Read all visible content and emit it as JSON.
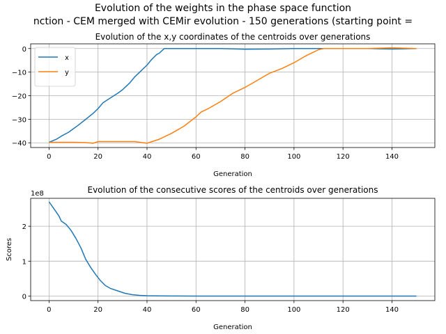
{
  "figure": {
    "suptitle_line1": "Evolution of the weights in the phase space  function",
    "suptitle_line2": "nction - CEM merged with CEMir evolution - 150 generations (starting point ="
  },
  "colors": {
    "series1": "#1f77b4",
    "series2": "#ff7f0e",
    "grid": "#b0b0b0"
  },
  "chart_data": [
    {
      "type": "line",
      "title": "Evolution of the x,y coordinates of the centroids over generations",
      "xlabel": "Generation",
      "ylabel": "",
      "xlim": [
        -7.5,
        157.5
      ],
      "ylim": [
        -42,
        2
      ],
      "xticks": [
        0,
        20,
        40,
        60,
        80,
        100,
        120,
        140
      ],
      "yticks": [
        -40,
        -30,
        -20,
        -10,
        0
      ],
      "grid": true,
      "legend": "upper-left",
      "series": [
        {
          "name": "x",
          "color": "#1f77b4",
          "x": [
            0,
            3,
            5,
            8,
            10,
            12,
            15,
            18,
            20,
            22,
            25,
            28,
            30,
            33,
            35,
            38,
            40,
            42,
            44,
            45,
            47,
            50,
            55,
            60,
            70,
            80,
            90,
            100,
            110,
            120,
            130,
            140,
            150
          ],
          "y": [
            -39.8,
            -38.5,
            -37.2,
            -35.5,
            -34,
            -32.5,
            -30,
            -27.5,
            -25.5,
            -23,
            -21,
            -19,
            -17.5,
            -14.5,
            -12,
            -9,
            -7,
            -4.5,
            -2.5,
            -2,
            0,
            0,
            0,
            0,
            0,
            -0.3,
            -0.2,
            0,
            0,
            0,
            0,
            -0.2,
            0
          ]
        },
        {
          "name": "y",
          "color": "#ff7f0e",
          "x": [
            0,
            5,
            10,
            15,
            18,
            20,
            25,
            30,
            35,
            38,
            40,
            42,
            45,
            50,
            55,
            60,
            62,
            65,
            70,
            75,
            80,
            85,
            90,
            95,
            100,
            105,
            108,
            110,
            112,
            120,
            130,
            140,
            150
          ],
          "y": [
            -39.8,
            -39.8,
            -39.8,
            -39.9,
            -40.2,
            -39.5,
            -39.5,
            -39.5,
            -39.5,
            -39.9,
            -40.2,
            -39.5,
            -38.5,
            -36,
            -33,
            -29,
            -27,
            -25.5,
            -22.5,
            -19,
            -16.5,
            -13.5,
            -10.5,
            -8.5,
            -6,
            -3,
            -1.5,
            -0.5,
            0,
            0,
            0,
            0.3,
            0
          ]
        }
      ]
    },
    {
      "type": "line",
      "title": "Evolution of the consecutive scores of the centroids over generations",
      "xlabel": "Generation",
      "ylabel": "Scores",
      "offset_label": "1e8",
      "xlim": [
        -7.5,
        157.5
      ],
      "ylim": [
        -0.13,
        2.8
      ],
      "xticks": [
        0,
        20,
        40,
        60,
        80,
        100,
        120,
        140
      ],
      "yticks": [
        0,
        1,
        2
      ],
      "grid": true,
      "series": [
        {
          "name": "",
          "color": "#1f77b4",
          "x": [
            0,
            2,
            4,
            5,
            7,
            9,
            11,
            13,
            15,
            17,
            19,
            21,
            23,
            25,
            28,
            31,
            34,
            37,
            40,
            45,
            50,
            60,
            80,
            100,
            120,
            140,
            150
          ],
          "y": [
            2.7,
            2.5,
            2.3,
            2.15,
            2.05,
            1.88,
            1.65,
            1.38,
            1.05,
            0.82,
            0.62,
            0.44,
            0.3,
            0.22,
            0.15,
            0.08,
            0.04,
            0.02,
            0.01,
            0.003,
            0.001,
            0,
            0,
            0,
            0,
            0,
            0
          ]
        }
      ]
    }
  ]
}
